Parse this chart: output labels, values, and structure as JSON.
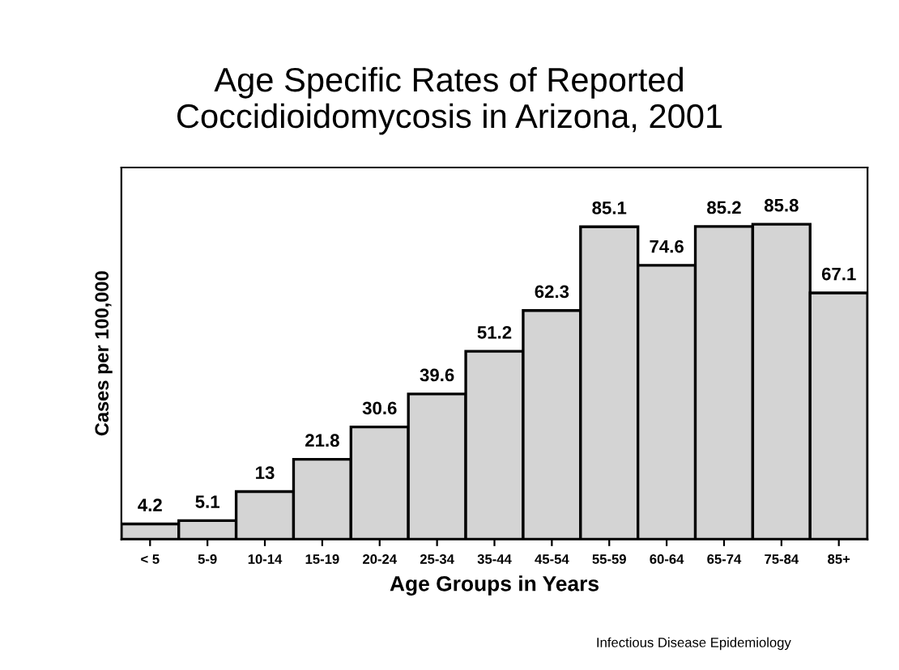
{
  "chart_data": {
    "type": "bar",
    "title": "Age Specific Rates of Reported\nCoccidioidomycosis in Arizona, 2001",
    "xlabel": "Age Groups in Years",
    "ylabel": "Cases per 100,000",
    "categories": [
      "< 5",
      "5-9",
      "10-14",
      "15-19",
      "20-24",
      "25-34",
      "35-44",
      "45-54",
      "55-59",
      "60-64",
      "65-74",
      "75-84",
      "85+"
    ],
    "values": [
      4.2,
      5.1,
      13,
      21.8,
      30.6,
      39.6,
      51.2,
      62.3,
      85.1,
      74.6,
      85.2,
      85.8,
      67.1
    ],
    "value_labels": [
      "4.2",
      "5.1",
      "13",
      "21.8",
      "30.6",
      "39.6",
      "51.2",
      "62.3",
      "85.1",
      "74.6",
      "85.2",
      "85.8",
      "67.1"
    ],
    "color": "#d4d4d4",
    "grid": false,
    "legend": false,
    "annotations": [
      "Infectious Disease Epidemiology"
    ]
  }
}
